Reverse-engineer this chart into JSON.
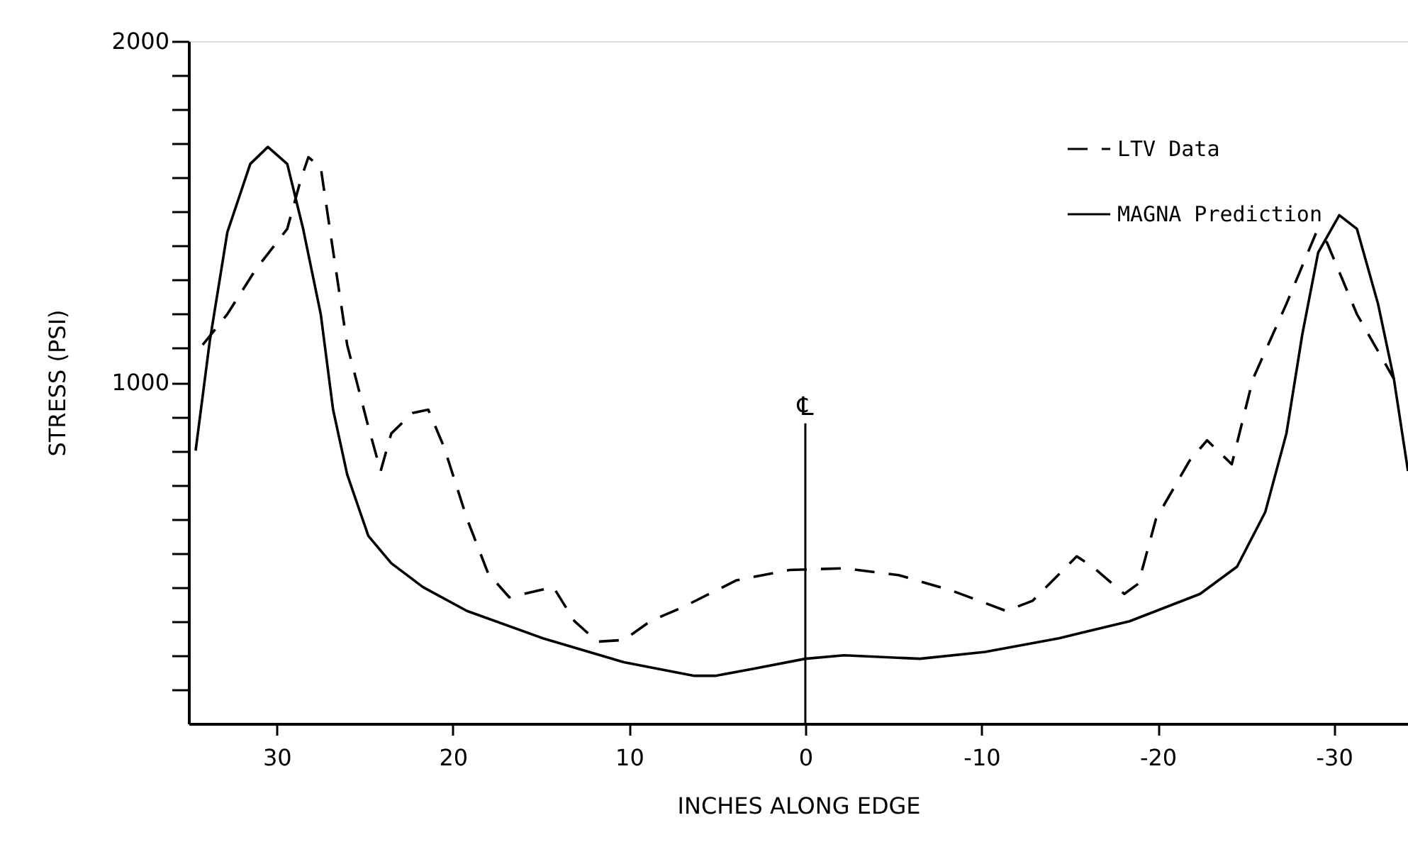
{
  "chart_data": {
    "type": "line",
    "xlabel": "INCHES ALONG EDGE",
    "ylabel": "STRESS (PSI)",
    "xlim": [
      35,
      -34.2
    ],
    "xticks": [
      30,
      20,
      10,
      0,
      -10,
      -20,
      -30
    ],
    "ylim": [
      0,
      2000
    ],
    "yticks": [
      {
        "value": 100,
        "label": null
      },
      {
        "value": 200,
        "label": null
      },
      {
        "value": 300,
        "label": null
      },
      {
        "value": 400,
        "label": null
      },
      {
        "value": 500,
        "label": null
      },
      {
        "value": 600,
        "label": null
      },
      {
        "value": 700,
        "label": null
      },
      {
        "value": 800,
        "label": null
      },
      {
        "value": 900,
        "label": null
      },
      1000,
      {
        "value": 1100,
        "label": null
      },
      {
        "value": 1200,
        "label": null
      },
      {
        "value": 1300,
        "label": null
      },
      {
        "value": 1400,
        "label": null
      },
      {
        "value": 1500,
        "label": null
      },
      {
        "value": 1600,
        "label": null
      },
      {
        "value": 1700,
        "label": null
      },
      {
        "value": 1800,
        "label": null
      },
      {
        "value": 1900,
        "label": null
      },
      2000
    ],
    "grid": false,
    "legend": "top right",
    "marker": "none",
    "ref_lines": [
      {
        "axis": "x",
        "value": 0,
        "label": "℄",
        "color": "#000000"
      }
    ],
    "series": [
      {
        "name": "LTV Data",
        "color": "#000000",
        "line_style": "dashed",
        "x": [
          34.2,
          32.8,
          31.2,
          29.4,
          28.6,
          28.2,
          27.5,
          26.9,
          26.0,
          24.8,
          24.1,
          23.5,
          22.3,
          21.4,
          20.5,
          19.2,
          18.0,
          16.8,
          14.3,
          13.1,
          11.8,
          10.3,
          8.8,
          7.0,
          3.9,
          0.9,
          -2.2,
          -5.3,
          -8.3,
          -11.4,
          -12.9,
          -15.4,
          -16.3,
          -18.1,
          -18.9,
          -19.9,
          -21.8,
          -22.8,
          -24.2,
          -25.4,
          -27.3,
          -29.0,
          -29.6,
          -31.3,
          -33.4
        ],
        "values": [
          1110,
          1200,
          1330,
          1450,
          1600,
          1660,
          1630,
          1420,
          1110,
          870,
          740,
          850,
          910,
          920,
          810,
          600,
          440,
          370,
          400,
          300,
          240,
          245,
          300,
          340,
          420,
          450,
          455,
          435,
          390,
          330,
          360,
          490,
          460,
          380,
          410,
          600,
          770,
          830,
          760,
          1010,
          1230,
          1440,
          1410,
          1200,
          1010
        ]
      },
      {
        "name": "MAGNA Prediction",
        "color": "#000000",
        "line_style": "solid",
        "x": [
          34.6,
          33.8,
          32.8,
          31.5,
          30.5,
          29.4,
          28.5,
          27.5,
          26.8,
          26.0,
          24.8,
          23.5,
          21.7,
          19.2,
          14.9,
          10.3,
          6.3,
          5.1,
          3.0,
          0,
          -2.2,
          -6.5,
          -10.2,
          -14.4,
          -18.4,
          -22.4,
          -24.5,
          -26.1,
          -27.3,
          -28.2,
          -29.1,
          -30.3,
          -31.3,
          -32.5,
          -33.4,
          -34.2
        ],
        "values": [
          800,
          1120,
          1440,
          1640,
          1690,
          1640,
          1450,
          1200,
          920,
          730,
          550,
          470,
          400,
          330,
          250,
          180,
          140,
          140,
          160,
          190,
          200,
          190,
          210,
          250,
          300,
          380,
          460,
          620,
          850,
          1140,
          1380,
          1490,
          1450,
          1230,
          1010,
          740
        ]
      }
    ]
  }
}
